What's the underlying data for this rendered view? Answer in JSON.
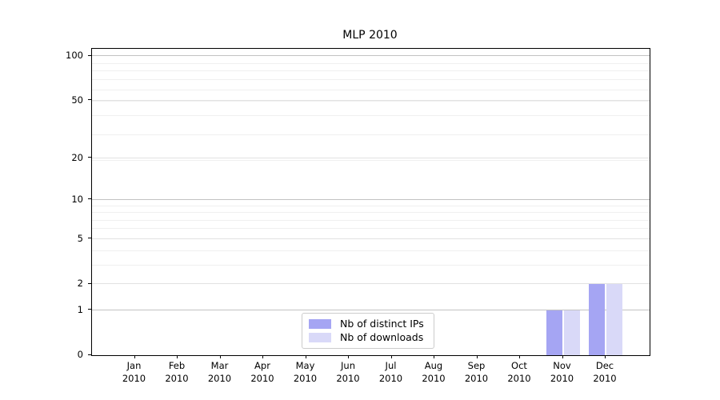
{
  "chart_data": {
    "type": "bar",
    "title": "MLP 2010",
    "categories": [
      "Jan 2010",
      "Feb 2010",
      "Mar 2010",
      "Apr 2010",
      "May 2010",
      "Jun 2010",
      "Jul 2010",
      "Aug 2010",
      "Sep 2010",
      "Oct 2010",
      "Nov 2010",
      "Dec 2010"
    ],
    "x_tick_line1": [
      "Jan",
      "Feb",
      "Mar",
      "Apr",
      "May",
      "Jun",
      "Jul",
      "Aug",
      "Sep",
      "Oct",
      "Nov",
      "Dec"
    ],
    "x_tick_line2": [
      "2010",
      "2010",
      "2010",
      "2010",
      "2010",
      "2010",
      "2010",
      "2010",
      "2010",
      "2010",
      "2010",
      "2010"
    ],
    "series": [
      {
        "name": "Nb of distinct IPs",
        "color": "#a5a5f3",
        "values": [
          0,
          0,
          0,
          0,
          0,
          0,
          0,
          0,
          0,
          0,
          1,
          2
        ]
      },
      {
        "name": "Nb of downloads",
        "color": "#d9d9f8",
        "values": [
          0,
          0,
          0,
          0,
          0,
          0,
          0,
          0,
          0,
          0,
          1,
          2
        ]
      }
    ],
    "xlabel": "",
    "ylabel": "",
    "y_axis": {
      "scale": "log1p",
      "tick_values": [
        0,
        1,
        2,
        5,
        10,
        20,
        50,
        100
      ],
      "tick_labels": [
        "0",
        "1",
        "2",
        "5",
        "10",
        "20",
        "50",
        "100"
      ],
      "range": [
        0,
        113
      ]
    },
    "grid": {
      "orientation": "horizontal",
      "major_values": [
        1,
        10,
        100
      ],
      "mid_values": [
        2,
        5,
        20,
        50
      ],
      "minor_values": [
        3,
        4,
        6,
        7,
        8,
        9,
        19,
        29,
        39,
        49,
        59,
        69,
        79,
        89
      ],
      "major_color": "#c2c2c2",
      "mid_color": "#e2e2e2",
      "minor_color": "#f0f0f0"
    },
    "legend_position": "inside-lower-center"
  }
}
